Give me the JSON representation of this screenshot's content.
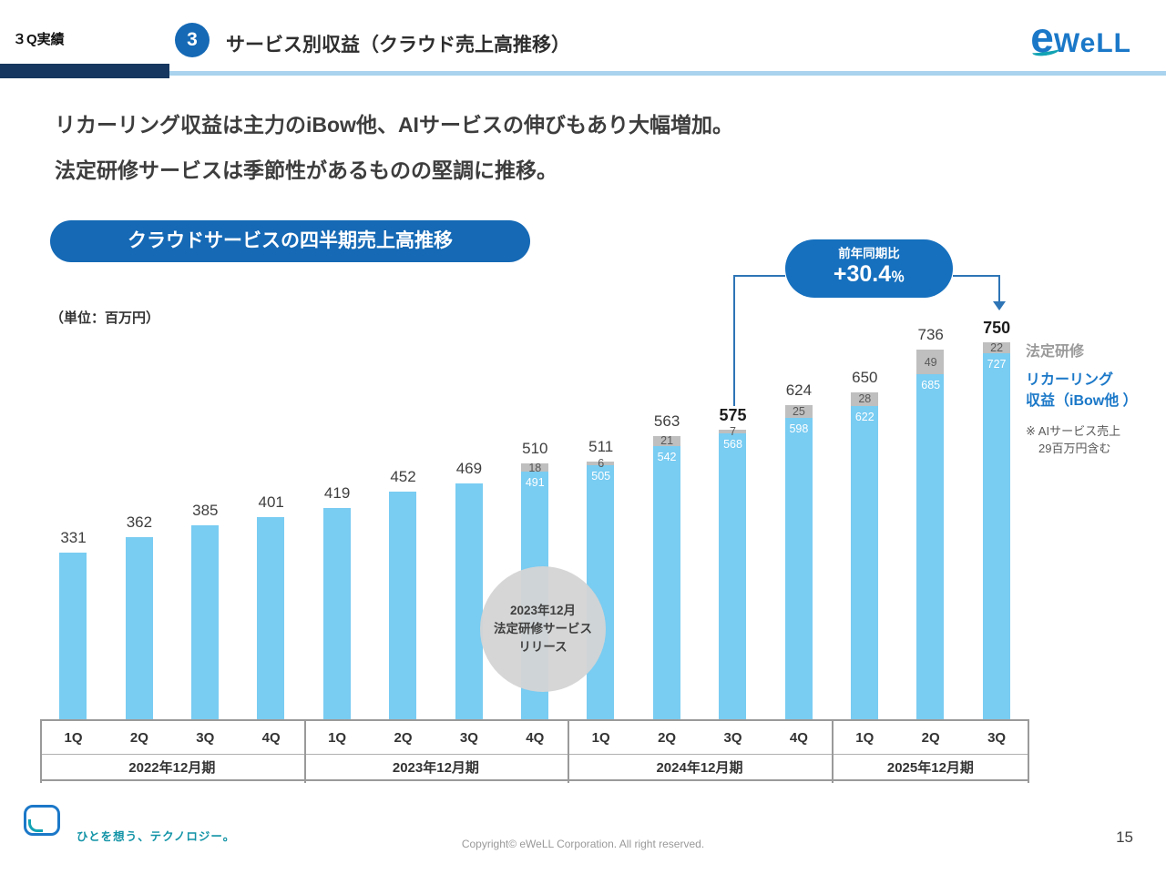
{
  "header": {
    "tag": "３Q実績",
    "badge": "3",
    "title": "サービス別収益（クラウド売上高推移）",
    "logo_e": "e",
    "logo_rest": "WeLL"
  },
  "lead": {
    "line1": "リカーリング収益は主力のiBow他、AIサービスの伸びもあり大幅増加。",
    "line2": "法定研修サービスは季節性があるものの堅調に推移。"
  },
  "chart_header": {
    "pill": "クラウドサービスの四半期売上高推移",
    "unit": "（単位：百万円）"
  },
  "callout": {
    "label": "前年同期比",
    "value": "+30.4",
    "suffix": "％"
  },
  "legend": {
    "training": "法定研修",
    "recurring_line1": "リカーリング",
    "recurring_line2": "収益（iBow他 ）",
    "note_line1": "※ AIサービス売上",
    "note_line2": "29百万円含む"
  },
  "annotation": {
    "line1": "2023年12月",
    "line2": "法定研修サービス",
    "line3": "リリース"
  },
  "chart_data": {
    "type": "bar",
    "stacked": true,
    "unit": "百万円",
    "categories": [
      "1Q",
      "2Q",
      "3Q",
      "4Q",
      "1Q",
      "2Q",
      "3Q",
      "4Q",
      "1Q",
      "2Q",
      "3Q",
      "4Q",
      "1Q",
      "2Q",
      "3Q"
    ],
    "year_groups": [
      {
        "label": "2022年12月期",
        "count": 4
      },
      {
        "label": "2023年12月期",
        "count": 4
      },
      {
        "label": "2024年12月期",
        "count": 4
      },
      {
        "label": "2025年12月期",
        "count": 3
      }
    ],
    "series": [
      {
        "name": "リカーリング収益（iBow他）",
        "color": "#79CCF2",
        "values": [
          331,
          362,
          385,
          401,
          419,
          452,
          469,
          491,
          505,
          542,
          568,
          598,
          622,
          685,
          727
        ]
      },
      {
        "name": "法定研修",
        "color": "#BFBFBF",
        "values": [
          0,
          0,
          0,
          0,
          0,
          0,
          0,
          18,
          6,
          21,
          7,
          25,
          28,
          49,
          22
        ]
      }
    ],
    "totals": [
      331,
      362,
      385,
      401,
      419,
      452,
      469,
      510,
      511,
      563,
      575,
      624,
      650,
      736,
      750
    ],
    "emphasized_totals": [
      575,
      750
    ],
    "ylim": [
      0,
      800
    ],
    "yoy_comparison": {
      "from_total": 575,
      "to_total": 750,
      "change_pct": "+30.4%"
    }
  },
  "footer": {
    "tagline": "ひとを想う、テクノロジー。",
    "copyright": "Copyright© eWeLL Corporation. All right reserved.",
    "page_number": "15"
  }
}
